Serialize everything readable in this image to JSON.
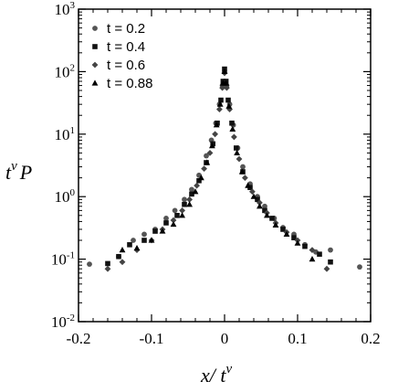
{
  "chart_data": {
    "type": "scatter",
    "title": "",
    "xlabel": {
      "base": "x/ t",
      "sup": "ν"
    },
    "ylabel": {
      "base": "t",
      "sup": "ν",
      "tail": "P"
    },
    "xlim": [
      -0.2,
      0.2
    ],
    "ylim": [
      0.01,
      1000
    ],
    "yscale": "log",
    "x_ticks": [
      -0.2,
      -0.1,
      0,
      0.1,
      0.2
    ],
    "x_tick_labels": [
      "-0.2",
      "-0.1",
      "0",
      "0.1",
      "0.2"
    ],
    "y_ticks": [
      0.01,
      0.1,
      1,
      10,
      100,
      1000
    ],
    "y_tick_labels": [
      {
        "base": "10",
        "exp": "-2"
      },
      {
        "base": "10",
        "exp": "-1"
      },
      {
        "base": "10",
        "exp": "0"
      },
      {
        "base": "10",
        "exp": "1"
      },
      {
        "base": "10",
        "exp": "2"
      },
      {
        "base": "10",
        "exp": "3"
      }
    ],
    "grid": false,
    "legend_position": "top-left",
    "series": [
      {
        "name": "t = 0.2",
        "marker": "circle",
        "color": "#555555",
        "points": [
          [
            -0.185,
            0.083
          ],
          [
            -0.145,
            0.11
          ],
          [
            -0.125,
            0.2
          ],
          [
            -0.11,
            0.25
          ],
          [
            -0.095,
            0.3
          ],
          [
            -0.08,
            0.45
          ],
          [
            -0.068,
            0.6
          ],
          [
            -0.055,
            0.9
          ],
          [
            -0.045,
            1.3
          ],
          [
            -0.035,
            2.2
          ],
          [
            -0.025,
            4.5
          ],
          [
            -0.018,
            8
          ],
          [
            -0.012,
            15
          ],
          [
            -0.007,
            30
          ],
          [
            -0.003,
            60
          ],
          [
            0.0,
            100
          ],
          [
            0.003,
            60
          ],
          [
            0.007,
            30
          ],
          [
            0.012,
            14
          ],
          [
            0.018,
            6
          ],
          [
            0.025,
            3
          ],
          [
            0.035,
            1.6
          ],
          [
            0.045,
            1.0
          ],
          [
            0.055,
            0.7
          ],
          [
            0.068,
            0.45
          ],
          [
            0.08,
            0.32
          ],
          [
            0.095,
            0.25
          ],
          [
            0.11,
            0.17
          ],
          [
            0.125,
            0.13
          ],
          [
            0.145,
            0.14
          ],
          [
            0.185,
            0.075
          ]
        ]
      },
      {
        "name": "t = 0.4",
        "marker": "square",
        "color": "#111111",
        "points": [
          [
            -0.16,
            0.085
          ],
          [
            -0.145,
            0.11
          ],
          [
            -0.13,
            0.17
          ],
          [
            -0.11,
            0.2
          ],
          [
            -0.095,
            0.28
          ],
          [
            -0.08,
            0.38
          ],
          [
            -0.065,
            0.5
          ],
          [
            -0.055,
            0.75
          ],
          [
            -0.045,
            1.1
          ],
          [
            -0.035,
            1.8
          ],
          [
            -0.025,
            3.5
          ],
          [
            -0.016,
            7
          ],
          [
            -0.01,
            15
          ],
          [
            -0.005,
            35
          ],
          [
            -0.002,
            70
          ],
          [
            0.0,
            110
          ],
          [
            0.002,
            70
          ],
          [
            0.005,
            35
          ],
          [
            0.01,
            15
          ],
          [
            0.016,
            6
          ],
          [
            0.025,
            2.5
          ],
          [
            0.035,
            1.4
          ],
          [
            0.045,
            0.9
          ],
          [
            0.055,
            0.6
          ],
          [
            0.065,
            0.45
          ],
          [
            0.08,
            0.3
          ],
          [
            0.095,
            0.22
          ],
          [
            0.11,
            0.16
          ],
          [
            0.13,
            0.12
          ],
          [
            0.145,
            0.09
          ]
        ]
      },
      {
        "name": "t = 0.6",
        "marker": "diamond",
        "color": "#444444",
        "points": [
          [
            -0.16,
            0.07
          ],
          [
            -0.14,
            0.09
          ],
          [
            -0.12,
            0.14
          ],
          [
            -0.1,
            0.2
          ],
          [
            -0.085,
            0.3
          ],
          [
            -0.07,
            0.42
          ],
          [
            -0.058,
            0.6
          ],
          [
            -0.048,
            0.9
          ],
          [
            -0.038,
            1.5
          ],
          [
            -0.028,
            2.8
          ],
          [
            -0.02,
            5
          ],
          [
            -0.013,
            10
          ],
          [
            -0.007,
            25
          ],
          [
            -0.003,
            55
          ],
          [
            0.0,
            95
          ],
          [
            0.003,
            55
          ],
          [
            0.007,
            25
          ],
          [
            0.013,
            9
          ],
          [
            0.02,
            4
          ],
          [
            0.028,
            2
          ],
          [
            0.038,
            1.2
          ],
          [
            0.048,
            0.8
          ],
          [
            0.058,
            0.55
          ],
          [
            0.07,
            0.38
          ],
          [
            0.085,
            0.27
          ],
          [
            0.1,
            0.2
          ],
          [
            0.12,
            0.14
          ],
          [
            0.14,
            0.07
          ]
        ]
      },
      {
        "name": "t = 0.88",
        "marker": "triangle",
        "color": "#000000",
        "points": [
          [
            -0.14,
            0.14
          ],
          [
            -0.12,
            0.15
          ],
          [
            -0.1,
            0.2
          ],
          [
            -0.085,
            0.28
          ],
          [
            -0.07,
            0.36
          ],
          [
            -0.058,
            0.5
          ],
          [
            -0.048,
            0.75
          ],
          [
            -0.04,
            1.2
          ],
          [
            -0.032,
            2
          ],
          [
            -0.024,
            3.5
          ],
          [
            -0.017,
            6.5
          ],
          [
            -0.011,
            14
          ],
          [
            -0.006,
            30
          ],
          [
            -0.002,
            65
          ],
          [
            0.0,
            100
          ],
          [
            0.002,
            65
          ],
          [
            0.006,
            28
          ],
          [
            0.011,
            12
          ],
          [
            0.017,
            5
          ],
          [
            0.024,
            2.5
          ],
          [
            0.032,
            1.5
          ],
          [
            0.04,
            1.0
          ],
          [
            0.048,
            0.7
          ],
          [
            0.058,
            0.5
          ],
          [
            0.07,
            0.35
          ],
          [
            0.085,
            0.25
          ],
          [
            0.1,
            0.18
          ],
          [
            0.12,
            0.1
          ]
        ]
      }
    ]
  }
}
